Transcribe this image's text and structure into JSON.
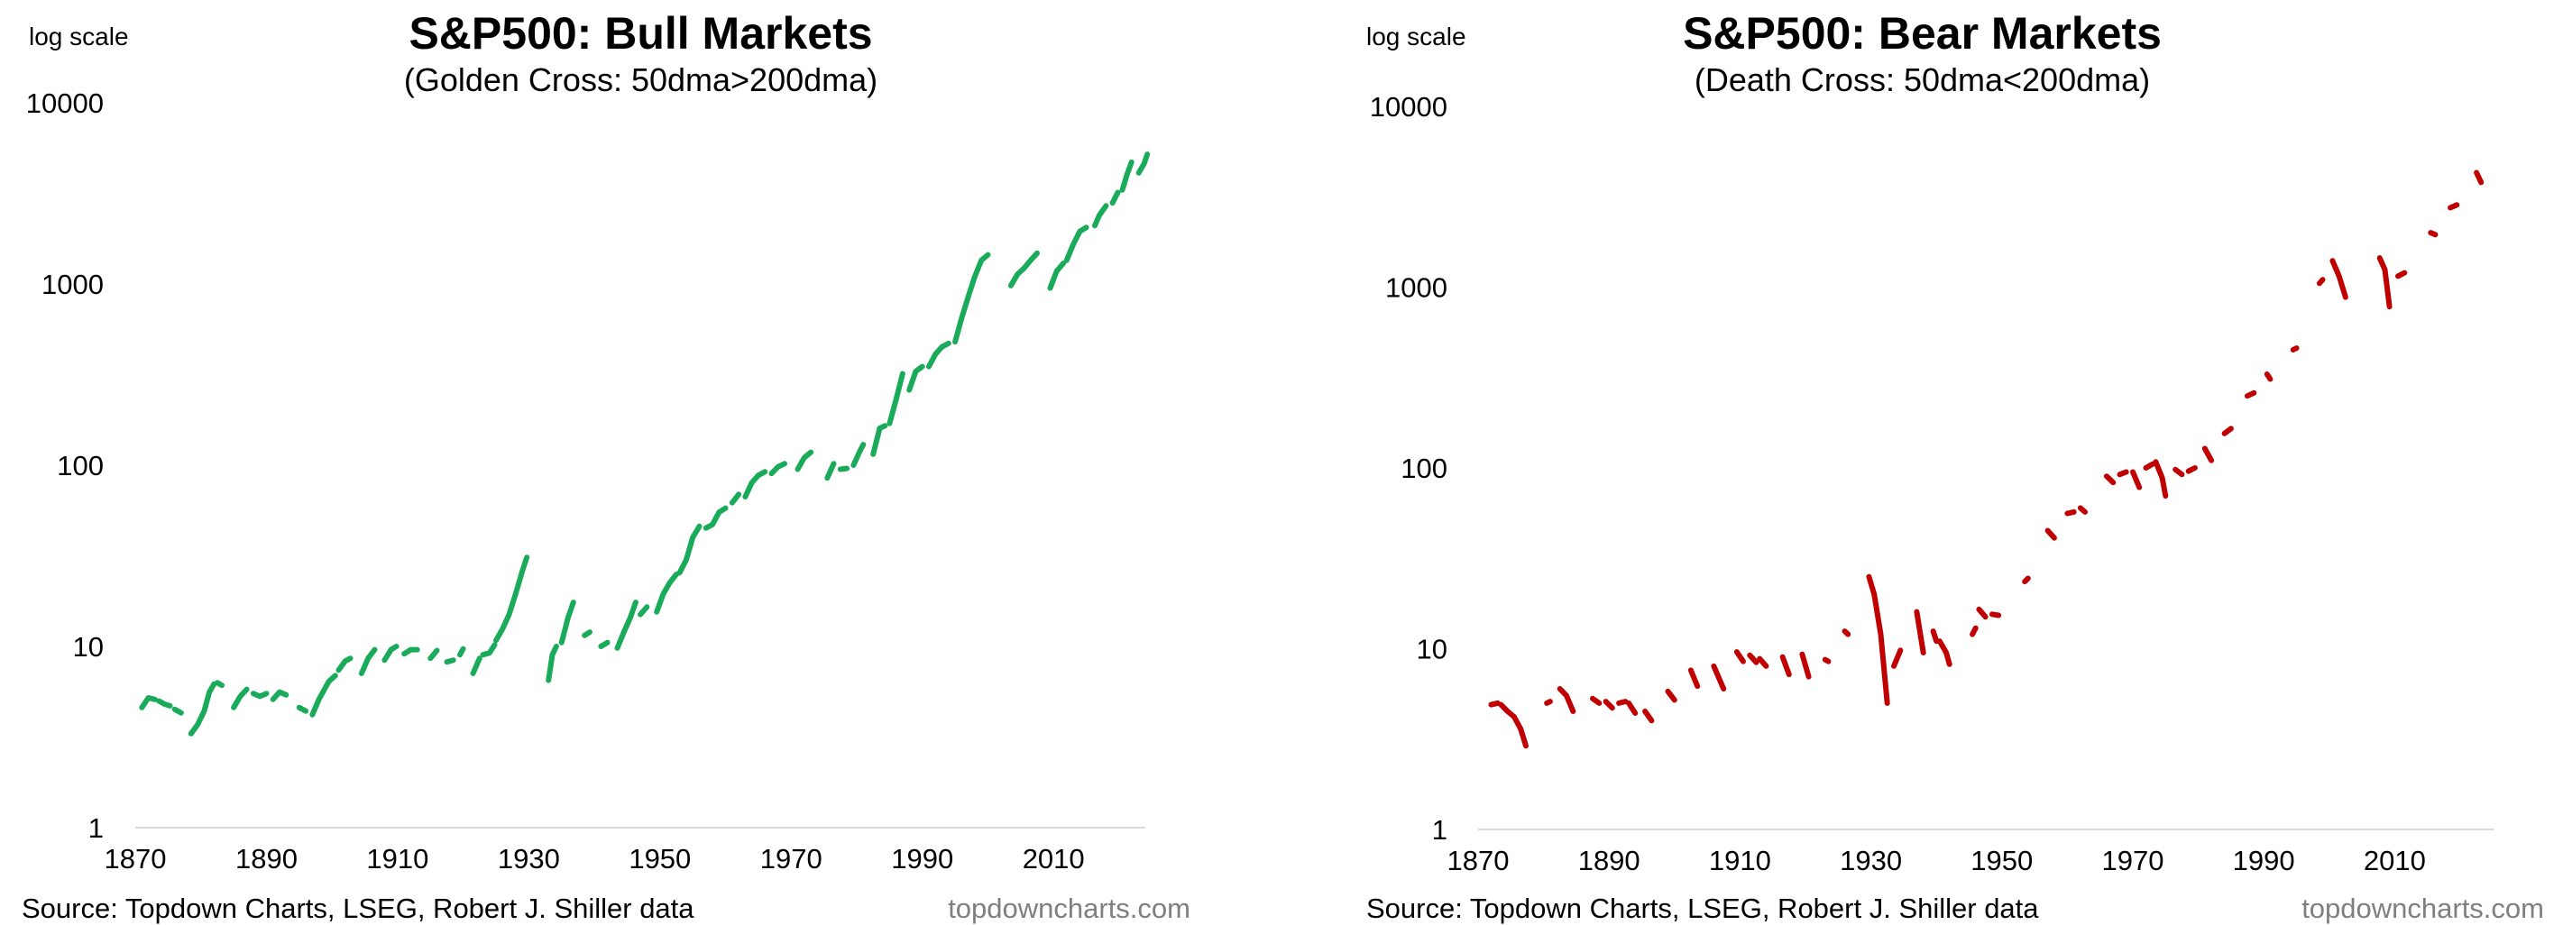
{
  "chart_data": [
    {
      "type": "line",
      "title": "S&P500: Bull Markets",
      "subtitle": "(Golden Cross: 50dma>200dma)",
      "scale_note": "log scale",
      "yscale": "log",
      "ylim": [
        1,
        10000
      ],
      "xlim": [
        1870,
        2024
      ],
      "y_ticks": [
        "1",
        "10",
        "100",
        "1000",
        "10000"
      ],
      "x_ticks": [
        "1870",
        "1890",
        "1910",
        "1930",
        "1950",
        "1970",
        "1990",
        "2010"
      ],
      "color": "#1AAB5A",
      "grid": false,
      "source": "Source: Topdown Charts, LSEG, Robert J. Shiller data",
      "brand": "topdowncharts.com",
      "segments": [
        [
          [
            1871.0,
            4.6
          ],
          [
            1872.0,
            5.2
          ],
          [
            1873.0,
            5.1
          ]
        ],
        [
          [
            1873.6,
            5.0
          ],
          [
            1874.5,
            4.8
          ],
          [
            1875.3,
            4.7
          ]
        ],
        [
          [
            1876.0,
            4.5
          ],
          [
            1877.0,
            4.3
          ]
        ],
        [
          [
            1878.5,
            3.3
          ],
          [
            1879.5,
            3.7
          ],
          [
            1880.5,
            4.4
          ],
          [
            1881.3,
            5.6
          ],
          [
            1882.0,
            6.2
          ]
        ],
        [
          [
            1882.5,
            6.3
          ],
          [
            1883.2,
            6.1
          ]
        ],
        [
          [
            1885.0,
            4.6
          ],
          [
            1886.0,
            5.3
          ],
          [
            1887.0,
            5.8
          ]
        ],
        [
          [
            1888.0,
            5.5
          ],
          [
            1889.0,
            5.3
          ],
          [
            1890.0,
            5.5
          ]
        ],
        [
          [
            1891.0,
            5.1
          ],
          [
            1892.0,
            5.6
          ],
          [
            1893.0,
            5.4
          ]
        ],
        [
          [
            1895.0,
            4.6
          ],
          [
            1896.0,
            4.4
          ]
        ],
        [
          [
            1897.0,
            4.2
          ],
          [
            1898.0,
            5.1
          ],
          [
            1899.5,
            6.4
          ],
          [
            1900.5,
            6.9
          ]
        ],
        [
          [
            1901.0,
            7.4
          ],
          [
            1902.0,
            8.3
          ],
          [
            1902.8,
            8.6
          ]
        ],
        [
          [
            1904.5,
            7.1
          ],
          [
            1905.5,
            8.6
          ],
          [
            1906.5,
            9.6
          ]
        ],
        [
          [
            1908.0,
            8.4
          ],
          [
            1909.0,
            9.6
          ],
          [
            1909.8,
            10.0
          ]
        ],
        [
          [
            1911.0,
            9.1
          ],
          [
            1912.0,
            9.6
          ],
          [
            1913.0,
            9.6
          ]
        ],
        [
          [
            1915.0,
            8.6
          ],
          [
            1916.0,
            9.5
          ]
        ],
        [
          [
            1917.5,
            8.2
          ],
          [
            1918.5,
            8.4
          ]
        ],
        [
          [
            1919.5,
            9.0
          ],
          [
            1920.0,
            9.7
          ]
        ],
        [
          [
            1921.5,
            7.1
          ],
          [
            1922.5,
            8.6
          ]
        ],
        [
          [
            1923.0,
            9.0
          ],
          [
            1924.0,
            9.2
          ],
          [
            1924.8,
            10.2
          ]
        ],
        [
          [
            1925.0,
            10.8
          ],
          [
            1926.0,
            12.5
          ],
          [
            1927.0,
            15.0
          ],
          [
            1928.0,
            19.5
          ],
          [
            1929.0,
            26.0
          ],
          [
            1929.7,
            31.0
          ]
        ],
        [
          [
            1933.0,
            6.5
          ],
          [
            1933.6,
            9.0
          ],
          [
            1934.2,
            10.0
          ]
        ],
        [
          [
            1935.0,
            10.5
          ],
          [
            1936.0,
            14.5
          ],
          [
            1936.8,
            17.5
          ]
        ],
        [
          [
            1938.5,
            11.5
          ],
          [
            1939.3,
            12.0
          ]
        ],
        [
          [
            1941.0,
            10.0
          ],
          [
            1942.0,
            10.5
          ]
        ],
        [
          [
            1943.5,
            9.8
          ],
          [
            1944.5,
            12.0
          ],
          [
            1945.5,
            14.5
          ],
          [
            1946.3,
            17.5
          ]
        ],
        [
          [
            1947.0,
            15.0
          ],
          [
            1948.0,
            16.5
          ]
        ],
        [
          [
            1949.5,
            15.5
          ],
          [
            1950.5,
            19.5
          ],
          [
            1951.5,
            22.5
          ],
          [
            1952.5,
            25.0
          ]
        ],
        [
          [
            1953.0,
            25.5
          ],
          [
            1954.0,
            30.0
          ],
          [
            1955.0,
            40.0
          ],
          [
            1956.0,
            46.0
          ]
        ],
        [
          [
            1957.0,
            45.0
          ],
          [
            1958.0,
            47.0
          ],
          [
            1959.0,
            55.0
          ],
          [
            1960.0,
            58.0
          ]
        ],
        [
          [
            1961.0,
            62.0
          ],
          [
            1962.0,
            69.0
          ]
        ],
        [
          [
            1963.0,
            67.0
          ],
          [
            1964.0,
            80.0
          ],
          [
            1965.0,
            88.0
          ],
          [
            1966.0,
            92.0
          ]
        ],
        [
          [
            1967.0,
            90.0
          ],
          [
            1968.0,
            98.0
          ],
          [
            1969.0,
            102.0
          ]
        ],
        [
          [
            1971.0,
            95.0
          ],
          [
            1972.0,
            110.0
          ],
          [
            1973.0,
            118.0
          ]
        ],
        [
          [
            1975.5,
            85.0
          ],
          [
            1976.5,
            102.0
          ]
        ],
        [
          [
            1977.5,
            95.0
          ],
          [
            1978.5,
            96.0
          ]
        ],
        [
          [
            1979.5,
            100.0
          ],
          [
            1980.5,
            120.0
          ],
          [
            1981.0,
            130.0
          ]
        ],
        [
          [
            1982.5,
            115.0
          ],
          [
            1983.5,
            160.0
          ],
          [
            1984.3,
            165.0
          ]
        ],
        [
          [
            1985.0,
            170.0
          ],
          [
            1986.0,
            230.0
          ],
          [
            1987.0,
            320.0
          ]
        ],
        [
          [
            1988.0,
            260.0
          ],
          [
            1989.0,
            330.0
          ],
          [
            1990.0,
            350.0
          ]
        ],
        [
          [
            1991.0,
            350.0
          ],
          [
            1992.0,
            410.0
          ],
          [
            1993.0,
            450.0
          ],
          [
            1994.0,
            470.0
          ]
        ],
        [
          [
            1995.0,
            480.0
          ],
          [
            1996.0,
            650.0
          ],
          [
            1997.0,
            850.0
          ],
          [
            1998.0,
            1100.0
          ],
          [
            1999.0,
            1350.0
          ],
          [
            2000.0,
            1450.0
          ]
        ],
        [
          [
            2003.5,
            980.0
          ],
          [
            2004.5,
            1130.0
          ],
          [
            2005.5,
            1220.0
          ],
          [
            2006.5,
            1350.0
          ],
          [
            2007.5,
            1480.0
          ]
        ],
        [
          [
            2009.5,
            950.0
          ],
          [
            2010.5,
            1180.0
          ],
          [
            2011.5,
            1300.0
          ]
        ],
        [
          [
            2012.0,
            1350.0
          ],
          [
            2013.0,
            1650.0
          ],
          [
            2014.0,
            1950.0
          ],
          [
            2015.0,
            2050.0
          ]
        ],
        [
          [
            2016.3,
            2100.0
          ],
          [
            2017.0,
            2400.0
          ],
          [
            2018.0,
            2700.0
          ]
        ],
        [
          [
            2019.0,
            2800.0
          ],
          [
            2019.8,
            3200.0
          ]
        ],
        [
          [
            2020.5,
            3300.0
          ],
          [
            2021.2,
            4000.0
          ],
          [
            2021.9,
            4700.0
          ]
        ],
        [
          [
            2023.0,
            4100.0
          ],
          [
            2023.8,
            4600.0
          ],
          [
            2024.3,
            5200.0
          ]
        ]
      ]
    },
    {
      "type": "line",
      "title": "S&P500: Bear Markets",
      "subtitle": "(Death Cross: 50dma<200dma)",
      "scale_note": "log scale",
      "yscale": "log",
      "ylim": [
        1,
        10000
      ],
      "xlim": [
        1870,
        2024
      ],
      "y_ticks": [
        "1",
        "10",
        "100",
        "1000",
        "10000"
      ],
      "x_ticks": [
        "1870",
        "1890",
        "1910",
        "1930",
        "1950",
        "1970",
        "1990",
        "2010"
      ],
      "color": "#C00000",
      "grid": false,
      "source": "Source: Topdown Charts, LSEG, Robert J. Shiller data",
      "brand": "topdowncharts.com",
      "segments": [
        [
          [
            1872.0,
            4.9
          ],
          [
            1873.0,
            5.0
          ]
        ],
        [
          [
            1873.5,
            4.9
          ],
          [
            1874.5,
            4.5
          ],
          [
            1875.5,
            4.2
          ],
          [
            1876.5,
            3.6
          ],
          [
            1877.3,
            2.9
          ]
        ],
        [
          [
            1880.5,
            5.0
          ],
          [
            1881.0,
            5.1
          ]
        ],
        [
          [
            1882.5,
            6.0
          ],
          [
            1883.5,
            5.5
          ],
          [
            1884.5,
            4.5
          ]
        ],
        [
          [
            1887.5,
            5.3
          ],
          [
            1888.5,
            5.0
          ]
        ],
        [
          [
            1889.5,
            5.1
          ],
          [
            1890.5,
            4.7
          ]
        ],
        [
          [
            1891.5,
            5.0
          ],
          [
            1892.5,
            5.1
          ]
        ],
        [
          [
            1893.0,
            5.0
          ],
          [
            1894.0,
            4.4
          ]
        ],
        [
          [
            1895.5,
            4.5
          ],
          [
            1896.5,
            4.0
          ]
        ],
        [
          [
            1899.0,
            5.8
          ],
          [
            1900.0,
            5.2
          ]
        ],
        [
          [
            1902.5,
            7.6
          ],
          [
            1903.5,
            6.2
          ]
        ],
        [
          [
            1906.0,
            8.0
          ],
          [
            1907.5,
            6.0
          ]
        ],
        [
          [
            1909.5,
            9.6
          ],
          [
            1910.5,
            8.5
          ]
        ],
        [
          [
            1911.5,
            9.2
          ],
          [
            1912.5,
            8.4
          ]
        ],
        [
          [
            1913.0,
            8.8
          ],
          [
            1914.0,
            8.0
          ]
        ],
        [
          [
            1916.5,
            9.0
          ],
          [
            1917.5,
            7.2
          ]
        ],
        [
          [
            1919.5,
            9.3
          ],
          [
            1920.5,
            7.0
          ]
        ],
        [
          [
            1923.0,
            8.7
          ],
          [
            1923.5,
            8.5
          ]
        ],
        [
          [
            1926.0,
            12.5
          ],
          [
            1926.5,
            12.0
          ]
        ],
        [
          [
            1929.7,
            25.0
          ],
          [
            1930.5,
            20.0
          ],
          [
            1931.5,
            12.0
          ],
          [
            1932.5,
            5.0
          ]
        ],
        [
          [
            1933.5,
            8.0
          ],
          [
            1934.5,
            9.8
          ]
        ],
        [
          [
            1937.0,
            16.0
          ],
          [
            1938.0,
            9.5
          ]
        ],
        [
          [
            1939.5,
            12.5
          ],
          [
            1940.0,
            11.0
          ]
        ],
        [
          [
            1940.5,
            11.0
          ],
          [
            1941.5,
            9.5
          ],
          [
            1942.0,
            8.2
          ]
        ],
        [
          [
            1945.5,
            12.0
          ],
          [
            1946.0,
            13.0
          ]
        ],
        [
          [
            1946.5,
            16.5
          ],
          [
            1947.5,
            15.0
          ]
        ],
        [
          [
            1948.5,
            15.5
          ],
          [
            1949.5,
            15.3
          ]
        ],
        [
          [
            1953.5,
            23.5
          ],
          [
            1954.0,
            24.5
          ]
        ],
        [
          [
            1957.0,
            45.0
          ],
          [
            1958.0,
            41.0
          ]
        ],
        [
          [
            1960.0,
            56.0
          ],
          [
            1961.0,
            57.0
          ]
        ],
        [
          [
            1962.0,
            60.0
          ],
          [
            1962.7,
            57.0
          ]
        ],
        [
          [
            1966.0,
            90.0
          ],
          [
            1967.0,
            83.0
          ]
        ],
        [
          [
            1968.0,
            92.0
          ],
          [
            1969.0,
            95.0
          ]
        ],
        [
          [
            1970.0,
            95.0
          ],
          [
            1971.0,
            78.0
          ]
        ],
        [
          [
            1972.0,
            100.0
          ],
          [
            1973.0,
            105.0
          ]
        ],
        [
          [
            1973.5,
            108.0
          ],
          [
            1974.5,
            88.0
          ],
          [
            1975.0,
            70.0
          ]
        ],
        [
          [
            1976.5,
            98.0
          ],
          [
            1977.5,
            92.0
          ]
        ],
        [
          [
            1978.5,
            96.0
          ],
          [
            1979.5,
            100.0
          ]
        ],
        [
          [
            1981.0,
            128.0
          ],
          [
            1982.0,
            110.0
          ]
        ],
        [
          [
            1984.0,
            155.0
          ],
          [
            1985.0,
            165.0
          ]
        ],
        [
          [
            1987.5,
            250.0
          ],
          [
            1988.5,
            260.0
          ]
        ],
        [
          [
            1990.5,
            330.0
          ],
          [
            1991.0,
            310.0
          ]
        ],
        [
          [
            1994.5,
            450.0
          ],
          [
            1995.0,
            460.0
          ]
        ],
        [
          [
            1998.5,
            1050.0
          ],
          [
            1999.0,
            1100.0
          ]
        ],
        [
          [
            2000.5,
            1400.0
          ],
          [
            2001.5,
            1150.0
          ],
          [
            2002.5,
            880.0
          ]
        ],
        [
          [
            2007.7,
            1450.0
          ],
          [
            2008.5,
            1250.0
          ],
          [
            2009.2,
            780.0
          ]
        ],
        [
          [
            2010.5,
            1150.0
          ],
          [
            2011.5,
            1200.0
          ]
        ],
        [
          [
            2015.5,
            2000.0
          ],
          [
            2016.2,
            1950.0
          ]
        ],
        [
          [
            2018.5,
            2750.0
          ],
          [
            2019.5,
            2850.0
          ]
        ],
        [
          [
            2022.5,
            4300.0
          ],
          [
            2023.2,
            3800.0
          ]
        ]
      ]
    }
  ]
}
